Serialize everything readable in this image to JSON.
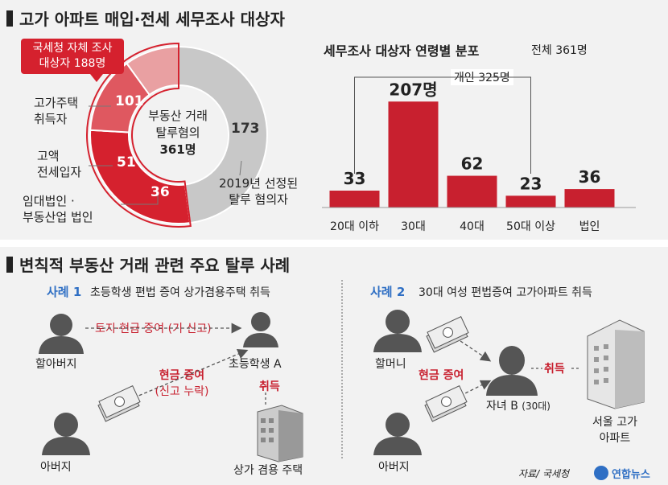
{
  "section1": {
    "title": "고가 아파트 매입·전세 세무조사 대상자",
    "callout_line1": "국세청 자체 조사",
    "callout_line2": "대상자 188명",
    "donut_center_line1": "부동산 거래",
    "donut_center_line2": "탈루혐의",
    "donut_center_line3": "361명",
    "donut_segments": [
      {
        "label": "고가주택\n취득자",
        "value": 101,
        "color": "#d5212e"
      },
      {
        "label": "고액\n전세입자",
        "value": 51,
        "color": "#df5860"
      },
      {
        "label": "임대법인 ·\n부동산업 법인",
        "value": 36,
        "color": "#e9a0a2"
      },
      {
        "label": "2019년 선정된\n탈루 혐의자",
        "value": 173,
        "color": "#c8c8c8"
      }
    ],
    "seg_labels": {
      "s1_line1": "고가주택",
      "s1_line2": "취득자",
      "s2_line1": "고액",
      "s2_line2": "전세입자",
      "s3_line1": "임대법인 ·",
      "s3_line2": "부동산업 법인",
      "s4_line1": "2019년 선정된",
      "s4_line2": "탈루 혐의자"
    },
    "value_labels": {
      "v1": "101",
      "v2": "51",
      "v3": "36",
      "v4": "173"
    }
  },
  "chart_data": {
    "type": "bar",
    "title": "세무조사 대상자 연령별 분포",
    "total_label": "전체 361명",
    "bracket_label": "개인 325명",
    "categories": [
      "20대 이하",
      "30대",
      "40대",
      "50대 이상",
      "법인"
    ],
    "values": [
      33,
      207,
      62,
      23,
      36
    ],
    "value_labels": [
      "33",
      "207명",
      "62",
      "23",
      "36"
    ],
    "ylim": [
      0,
      220
    ],
    "bar_color": "#c8202f",
    "grid": false
  },
  "section2": {
    "title": "변칙적 부동산 거래 관련 주요 탈루 사례",
    "case1": {
      "label": "사례 1",
      "desc": "초등학생 편법 증여 상가겸용주택 취득",
      "grandfather": "할아버지",
      "student": "초등학생 A",
      "father": "아버지",
      "gift1": "토지·현금 증여 (기 신고)",
      "gift2_line1": "현금 증여",
      "gift2_line2": "(신고 누락)",
      "acquire": "취득",
      "building": "상가 겸용 주택"
    },
    "case2": {
      "label": "사례 2",
      "desc": "30대 여성 편법증여 고가아파트 취득",
      "grandmother": "할머니",
      "daughter": "자녀 B",
      "daughter_age": "(30대)",
      "father": "아버지",
      "gift": "현금 증여",
      "acquire": "취득",
      "apt_line1": "서울 고가",
      "apt_line2": "아파트"
    },
    "source": "자료/ 국세청",
    "brand": "연합뉴스"
  }
}
